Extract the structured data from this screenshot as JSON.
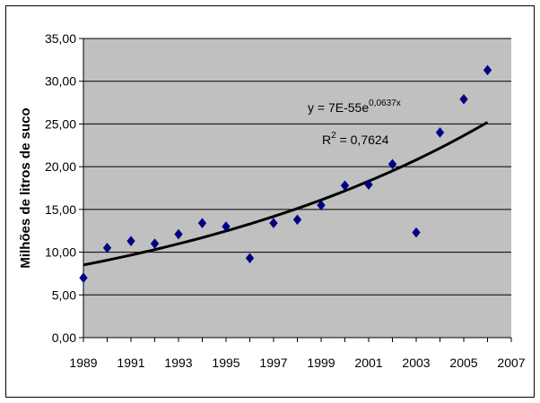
{
  "chart_data": {
    "type": "scatter",
    "ylabel": "Milhões de litros de suco",
    "xlim": [
      1989,
      2007
    ],
    "ylim": [
      0,
      35
    ],
    "x_ticks": [
      "1989",
      "1991",
      "1993",
      "1995",
      "1997",
      "1999",
      "2001",
      "2003",
      "2005",
      "2007"
    ],
    "y_ticks": [
      "0,00",
      "5,00",
      "10,00",
      "15,00",
      "20,00",
      "25,00",
      "30,00",
      "35,00"
    ],
    "grid": true,
    "points": [
      {
        "x": 1989,
        "y": 7.0
      },
      {
        "x": 1990,
        "y": 10.5
      },
      {
        "x": 1991,
        "y": 11.3
      },
      {
        "x": 1992,
        "y": 11.0
      },
      {
        "x": 1993,
        "y": 12.1
      },
      {
        "x": 1994,
        "y": 13.4
      },
      {
        "x": 1995,
        "y": 13.0
      },
      {
        "x": 1996,
        "y": 9.3
      },
      {
        "x": 1997,
        "y": 13.4
      },
      {
        "x": 1998,
        "y": 13.8
      },
      {
        "x": 1999,
        "y": 15.5
      },
      {
        "x": 2000,
        "y": 17.8
      },
      {
        "x": 2001,
        "y": 17.9
      },
      {
        "x": 2002,
        "y": 20.3
      },
      {
        "x": 2003,
        "y": 12.3
      },
      {
        "x": 2004,
        "y": 24.0
      },
      {
        "x": 2005,
        "y": 27.9
      },
      {
        "x": 2006,
        "y": 31.3
      }
    ],
    "trendline": {
      "type": "exponential",
      "equation_base": "y = 7E-55e",
      "equation_exponent": "0,0637x",
      "r2_prefix": "R",
      "r2_power": "2",
      "r2_value": " = 0,7624",
      "start": {
        "x": 1989,
        "y": 8.5
      },
      "end": {
        "x": 2006,
        "y": 25.2
      }
    },
    "colors": {
      "plot_area": "#c0c0c0",
      "marker": "#000080",
      "trendline": "#000000",
      "gridline": "#000000"
    }
  }
}
